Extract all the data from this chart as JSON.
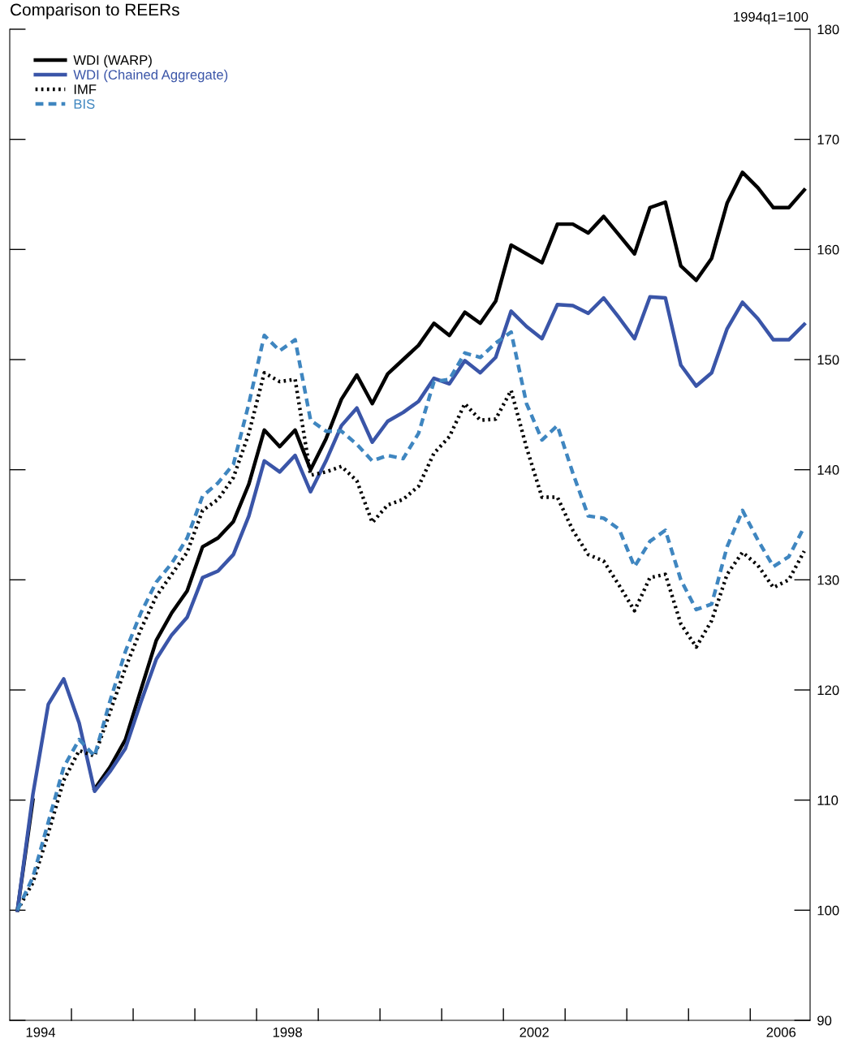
{
  "chart_data": {
    "type": "line",
    "title": "Comparison to REERs",
    "annotations": [
      "1994q1=100"
    ],
    "x": [
      1994.125,
      1994.375,
      1994.625,
      1994.875,
      1995.125,
      1995.375,
      1995.625,
      1995.875,
      1996.125,
      1996.375,
      1996.625,
      1996.875,
      1997.125,
      1997.375,
      1997.625,
      1997.875,
      1998.125,
      1998.375,
      1998.625,
      1998.875,
      1999.125,
      1999.375,
      1999.625,
      1999.875,
      2000.125,
      2000.375,
      2000.625,
      2000.875,
      2001.125,
      2001.375,
      2001.625,
      2001.875,
      2002.125,
      2002.375,
      2002.625,
      2002.875,
      2003.125,
      2003.375,
      2003.625,
      2003.875,
      2004.125,
      2004.375,
      2004.625,
      2004.875,
      2005.125,
      2005.375,
      2005.625,
      2005.875,
      2006.125,
      2006.375,
      2006.625,
      2006.875
    ],
    "series": [
      {
        "name": "WDI (WARP)",
        "color": "#000000",
        "line_style": "solid",
        "values": [
          100,
          110,
          null,
          null,
          null,
          111,
          113,
          115.5,
          120,
          124.5,
          127,
          129,
          133,
          133.8,
          135.3,
          138.7,
          143.6,
          142.1,
          143.6,
          140,
          142.8,
          146.4,
          148.6,
          146,
          148.7,
          150,
          151.3,
          153.3,
          152.2,
          154.3,
          153.3,
          155.3,
          160.4,
          159.6,
          158.8,
          162.3,
          162.3,
          161.5,
          163,
          161.3,
          159.6,
          163.8,
          164.3,
          158.5,
          157.2,
          159.2,
          164.2,
          167,
          165.6,
          163.8,
          163.8,
          165.4
        ]
      },
      {
        "name": "WDI (Chained Aggregate)",
        "color": "#3a55a8",
        "line_style": "solid",
        "values": [
          100,
          110.5,
          118.7,
          121,
          117,
          110.8,
          112.6,
          114.7,
          118.9,
          122.8,
          125,
          126.6,
          130.2,
          130.8,
          132.3,
          135.8,
          140.8,
          139.8,
          141.3,
          138,
          140.8,
          144,
          145.6,
          142.5,
          144.4,
          145.2,
          146.2,
          148.3,
          147.8,
          149.9,
          148.8,
          150.2,
          154.4,
          153,
          151.9,
          155,
          154.9,
          154.2,
          155.6,
          153.8,
          151.9,
          155.7,
          155.6,
          149.5,
          147.6,
          148.8,
          152.8,
          155.2,
          153.7,
          151.8,
          151.8,
          153.2
        ]
      },
      {
        "name": "IMF",
        "color": "#000000",
        "line_style": "dotted",
        "values": [
          100,
          102.5,
          107,
          111.8,
          114.5,
          114,
          118,
          122,
          125.5,
          128.5,
          130.5,
          132.5,
          136.3,
          137.3,
          139.3,
          143.3,
          148.8,
          148,
          148.2,
          139.5,
          139.8,
          140.3,
          139,
          135.2,
          136.8,
          137.3,
          138.5,
          141.5,
          143,
          146,
          144.5,
          144.6,
          147.2,
          142,
          137.5,
          137.5,
          134.5,
          132.3,
          131.7,
          129.5,
          127.2,
          130.2,
          130.5,
          126,
          123.9,
          126.3,
          130.5,
          132.5,
          131.3,
          129.3,
          130,
          132.6
        ]
      },
      {
        "name": "BIS",
        "color": "#3f86c0",
        "line_style": "dashed",
        "values": [
          100,
          103,
          108,
          113,
          115.5,
          114,
          119,
          123.5,
          127,
          129.8,
          131.5,
          133.8,
          137.6,
          138.8,
          140.5,
          146,
          152.2,
          150.8,
          151.8,
          144.5,
          143.5,
          143.5,
          142.3,
          140.8,
          141.3,
          141,
          143.3,
          148,
          148.2,
          150.6,
          150.2,
          151.5,
          152.5,
          146,
          142.7,
          144,
          139.7,
          135.8,
          135.6,
          134.6,
          131.2,
          133.5,
          134.5,
          130,
          127.3,
          127.8,
          133,
          136.3,
          133.6,
          131.2,
          132.1,
          134.8
        ]
      }
    ],
    "xlim": [
      1994,
      2006.97
    ],
    "xticks": [
      {
        "value": 1994.5,
        "label": "1994"
      },
      {
        "value": 1995,
        "label": null
      },
      {
        "value": 1996,
        "label": null
      },
      {
        "value": 1997,
        "label": null
      },
      {
        "value": 1998,
        "label": null
      },
      {
        "value": 1998.5,
        "label": "1998"
      },
      {
        "value": 1999,
        "label": null
      },
      {
        "value": 2000,
        "label": null
      },
      {
        "value": 2001,
        "label": null
      },
      {
        "value": 2002,
        "label": null
      },
      {
        "value": 2002.5,
        "label": "2002"
      },
      {
        "value": 2003,
        "label": null
      },
      {
        "value": 2004,
        "label": null
      },
      {
        "value": 2005,
        "label": null
      },
      {
        "value": 2006,
        "label": null
      },
      {
        "value": 2006.5,
        "label": "2006"
      }
    ],
    "ylim": [
      90,
      180
    ],
    "yticks": [
      90,
      100,
      110,
      120,
      130,
      140,
      150,
      160,
      170,
      180
    ],
    "grid": false,
    "legend": "top left",
    "marker": "none"
  }
}
